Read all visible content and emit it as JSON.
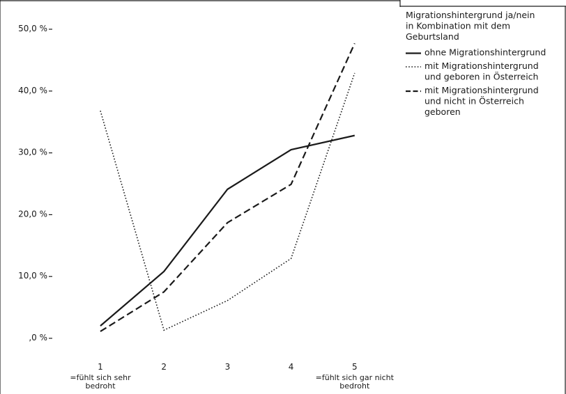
{
  "chart_data": {
    "type": "line",
    "categories": [
      "1",
      "2",
      "3",
      "4",
      "5"
    ],
    "category_sublabels": {
      "1": [
        "=fühlt sich sehr",
        "bedroht"
      ],
      "5": [
        "=fühlt sich gar nicht",
        "bedroht"
      ]
    },
    "y_ticks": [
      ",0 %",
      "10,0 %",
      "20,0 %",
      "30,0 %",
      "40,0 %",
      "50,0 %"
    ],
    "ylim": [
      0,
      50
    ],
    "grid": false,
    "legend_position": "top-right",
    "legend_title": [
      "Migrationshintergrund ja/nein",
      "in Kombination mit dem",
      "Geburtsland"
    ],
    "series": [
      {
        "name": "ohne Migrationshintergrund",
        "name_lines": [
          "ohne Migrationshintergrund"
        ],
        "style": "solid",
        "values": [
          1.9,
          10.7,
          24.0,
          30.4,
          32.7
        ]
      },
      {
        "name": "mit Migrationshintergrund und geboren in Österreich",
        "name_lines": [
          "mit Migrationshintergrund",
          "und geboren in Österreich"
        ],
        "style": "dotted",
        "values": [
          36.7,
          1.2,
          6.0,
          12.8,
          42.8
        ]
      },
      {
        "name": "mit Migrationshintergrund und nicht in Österreich geboren",
        "name_lines": [
          "mit Migrationshintergrund",
          "und nicht in Österreich",
          "geboren"
        ],
        "style": "dashed",
        "values": [
          1.0,
          7.4,
          18.6,
          24.8,
          47.6
        ]
      }
    ],
    "colors": {
      "line": "#1a1a1a",
      "frame": "#1a1a1a"
    }
  }
}
